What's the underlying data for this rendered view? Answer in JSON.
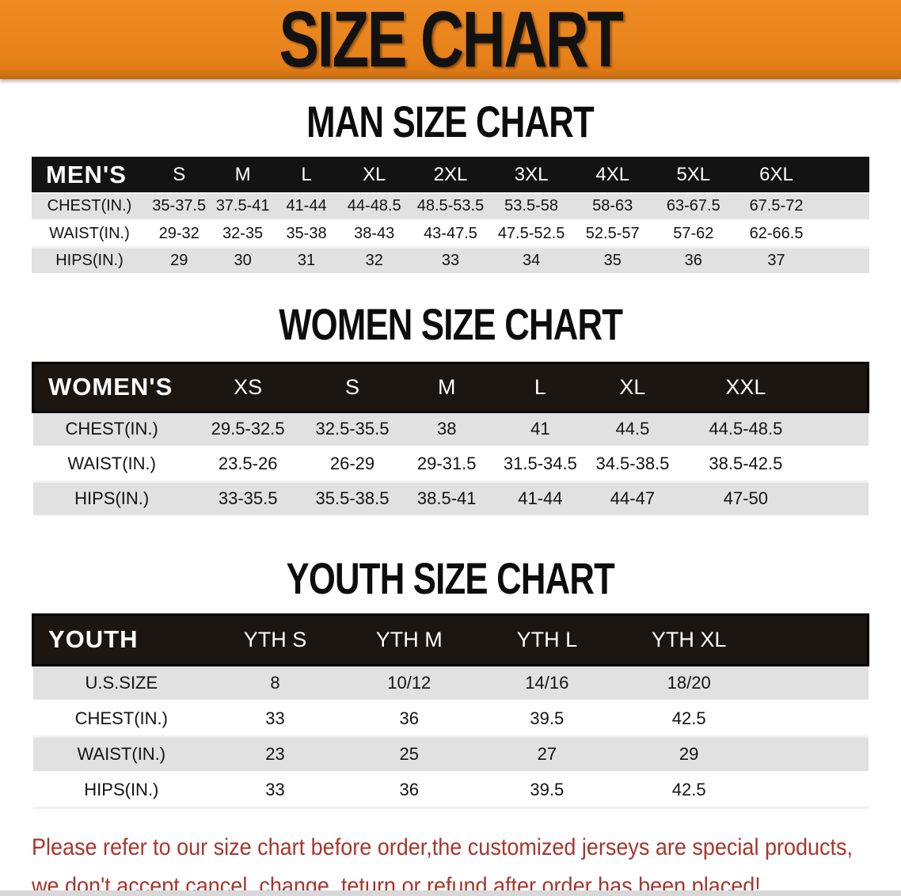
{
  "banner": {
    "title": "SIZE CHART",
    "bg_color": "#E8821B"
  },
  "sections": [
    {
      "key": "men",
      "title": "MAN SIZE CHART",
      "header_label": "MEN'S",
      "sizes": [
        "S",
        "M",
        "L",
        "XL",
        "2XL",
        "3XL",
        "4XL",
        "5XL",
        "6XL"
      ],
      "rows": [
        {
          "label": "CHEST(IN.)",
          "values": [
            "35-37.5",
            "37.5-41",
            "41-44",
            "44-48.5",
            "48.5-53.5",
            "53.5-58",
            "58-63",
            "63-67.5",
            "67.5-72"
          ]
        },
        {
          "label": "WAIST(IN.)",
          "values": [
            "29-32",
            "32-35",
            "35-38",
            "38-43",
            "43-47.5",
            "47.5-52.5",
            "52.5-57",
            "57-62",
            "62-66.5"
          ]
        },
        {
          "label": "HIPS(IN.)",
          "values": [
            "29",
            "30",
            "31",
            "32",
            "33",
            "34",
            "35",
            "36",
            "37"
          ]
        }
      ]
    },
    {
      "key": "women",
      "title": "WOMEN SIZE CHART",
      "header_label": "WOMEN'S",
      "sizes": [
        "XS",
        "S",
        "M",
        "L",
        "XL",
        "XXL"
      ],
      "rows": [
        {
          "label": "CHEST(IN.)",
          "values": [
            "29.5-32.5",
            "32.5-35.5",
            "38",
            "41",
            "44.5",
            "44.5-48.5"
          ]
        },
        {
          "label": "WAIST(IN.)",
          "values": [
            "23.5-26",
            "26-29",
            "29-31.5",
            "31.5-34.5",
            "34.5-38.5",
            "38.5-42.5"
          ]
        },
        {
          "label": "HIPS(IN.)",
          "values": [
            "33-35.5",
            "35.5-38.5",
            "38.5-41",
            "41-44",
            "44-47",
            "47-50"
          ]
        }
      ]
    },
    {
      "key": "youth",
      "title": "YOUTH SIZE CHART",
      "header_label": "YOUTH",
      "sizes": [
        "YTH S",
        "YTH M",
        "YTH L",
        "YTH XL"
      ],
      "rows": [
        {
          "label": "U.S.SIZE",
          "values": [
            "8",
            "10/12",
            "14/16",
            "18/20"
          ]
        },
        {
          "label": "CHEST(IN.)",
          "values": [
            "33",
            "36",
            "39.5",
            "42.5"
          ]
        },
        {
          "label": "WAIST(IN.)",
          "values": [
            "23",
            "25",
            "27",
            "29"
          ]
        },
        {
          "label": "HIPS(IN.)",
          "values": [
            "33",
            "36",
            "39.5",
            "42.5"
          ]
        }
      ]
    }
  ],
  "disclaimer": {
    "line1": "Please refer to our size chart before order,the customized jerseys are special products,",
    "line2": "we don't accept cancel, change, teturn or refund after order has been placed!",
    "color": "#A8352C"
  },
  "colors": {
    "banner_orange": "#E8821B",
    "header_bar_black": "#131313",
    "row_gray": "#E1E1E1",
    "disclaimer_red": "#A8352C"
  }
}
